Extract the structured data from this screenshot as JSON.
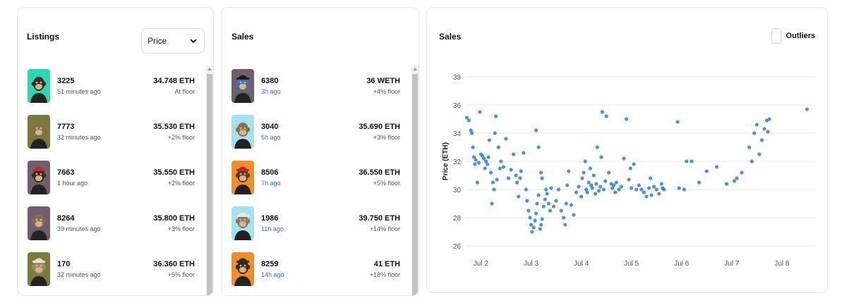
{
  "listings": {
    "title": "Listings",
    "sort_value": "Price",
    "items": [
      {
        "id": "3225",
        "time": "51 minutes ago",
        "price": "34.748 ETH",
        "floor": "At floor",
        "bg": "#2fd6b3",
        "fur": "#3b2d22",
        "hat": "none"
      },
      {
        "id": "7773",
        "time": "32 minutes ago",
        "price": "35.530 ETH",
        "floor": "+2% floor",
        "bg": "#7a7a3a",
        "fur": "#8b6c4a",
        "hat": "none"
      },
      {
        "id": "7663",
        "time": "1 hour ago",
        "price": "35.550 ETH",
        "floor": "+2% floor",
        "bg": "#6e5f6e",
        "fur": "#3a2a20",
        "hat": "#c0282d"
      },
      {
        "id": "8264",
        "time": "39 minutes ago",
        "price": "35.800 ETH",
        "floor": "+3% floor",
        "bg": "#6e5f6e",
        "fur": "#8b6c4a",
        "hat": "none"
      },
      {
        "id": "170",
        "time": "32 minutes ago",
        "price": "36.360 ETH",
        "floor": "+5% floor",
        "bg": "#7a7a3a",
        "fur": "#9a8a6a",
        "hat": "#e8e3d0"
      }
    ]
  },
  "sales": {
    "title": "Sales",
    "items": [
      {
        "id": "6380",
        "time": "3h ago",
        "price": "36 WETH",
        "floor": "+4% floor",
        "bg": "#6e5f6e",
        "fur": "#4a6fa5",
        "hat": "#1b1b1b"
      },
      {
        "id": "3040",
        "time": "5h ago",
        "price": "35.690 ETH",
        "floor": "+3% floor",
        "bg": "#a6e1ee",
        "fur": "#8b6c4a",
        "hat": "none"
      },
      {
        "id": "8506",
        "time": "7h ago",
        "price": "36.550 ETH",
        "floor": "+5% floor",
        "bg": "#ee8f2a",
        "fur": "#5a3a28",
        "hat": "#c0282d"
      },
      {
        "id": "1986",
        "time": "11h ago",
        "price": "39.750 ETH",
        "floor": "+14% floor",
        "bg": "#a6e1ee",
        "fur": "#8b7a5a",
        "hat": "#e8e8e8"
      },
      {
        "id": "8259",
        "time": "14h ago",
        "price": "41 ETH",
        "floor": "+18% floor",
        "bg": "#ee8f2a",
        "fur": "#3a2a20",
        "hat": "#2a2a2a"
      }
    ]
  },
  "chart": {
    "title": "Sales",
    "outliers_label": "Outliers",
    "accent": "#2f7fd8"
  },
  "chart_data": {
    "type": "scatter",
    "title": "Sales",
    "xlabel": "",
    "ylabel": "Price (ETH)",
    "xlim": [
      1.7,
      8.65
    ],
    "ylim": [
      25.5,
      38.5
    ],
    "x_ticks": [
      {
        "v": 2,
        "label": "Jul 2"
      },
      {
        "v": 3,
        "label": "Jul 3"
      },
      {
        "v": 4,
        "label": "Jul 4"
      },
      {
        "v": 5,
        "label": "Jul 5"
      },
      {
        "v": 6,
        "label": "Jul 6"
      },
      {
        "v": 7,
        "label": "Jul 7"
      },
      {
        "v": 8,
        "label": "Jul 8"
      }
    ],
    "y_ticks": [
      26,
      28,
      30,
      32,
      34,
      36,
      38
    ],
    "grid": true,
    "points": [
      [
        1.72,
        35.1
      ],
      [
        1.76,
        34.9
      ],
      [
        1.8,
        34.2
      ],
      [
        1.82,
        34.0
      ],
      [
        1.84,
        33.0
      ],
      [
        1.86,
        32.3
      ],
      [
        1.88,
        31.8
      ],
      [
        1.9,
        32.1
      ],
      [
        1.93,
        30.5
      ],
      [
        1.96,
        31.9
      ],
      [
        1.98,
        35.5
      ],
      [
        2.0,
        32.5
      ],
      [
        2.03,
        32.4
      ],
      [
        2.06,
        32.2
      ],
      [
        2.08,
        31.5
      ],
      [
        2.1,
        32.0
      ],
      [
        2.13,
        31.8
      ],
      [
        2.15,
        32.3
      ],
      [
        2.17,
        33.5
      ],
      [
        2.2,
        31.2
      ],
      [
        2.22,
        29.0
      ],
      [
        2.24,
        30.5
      ],
      [
        2.26,
        30.0
      ],
      [
        2.28,
        34.0
      ],
      [
        2.3,
        35.2
      ],
      [
        2.32,
        30.7
      ],
      [
        2.35,
        33.0
      ],
      [
        2.38,
        31.5
      ],
      [
        2.4,
        32.0
      ],
      [
        2.45,
        31.6
      ],
      [
        2.5,
        33.6
      ],
      [
        2.55,
        30.8
      ],
      [
        2.6,
        31.4
      ],
      [
        2.65,
        32.5
      ],
      [
        2.7,
        31.0
      ],
      [
        2.72,
        30.5
      ],
      [
        2.75,
        29.5
      ],
      [
        2.78,
        30.8
      ],
      [
        2.8,
        31.3
      ],
      [
        2.85,
        32.6
      ],
      [
        2.9,
        30.0
      ],
      [
        2.92,
        29.2
      ],
      [
        2.95,
        28.5
      ],
      [
        2.98,
        28.0
      ],
      [
        3.0,
        27.5
      ],
      [
        3.02,
        27.0
      ],
      [
        3.05,
        27.3
      ],
      [
        3.08,
        27.8
      ],
      [
        3.1,
        28.3
      ],
      [
        3.12,
        29.0
      ],
      [
        3.15,
        29.6
      ],
      [
        3.18,
        27.2
      ],
      [
        3.2,
        27.5
      ],
      [
        3.22,
        27.9
      ],
      [
        3.25,
        28.8
      ],
      [
        3.28,
        29.3
      ],
      [
        3.3,
        30.0
      ],
      [
        3.32,
        29.7
      ],
      [
        3.35,
        29.0
      ],
      [
        3.38,
        28.5
      ],
      [
        3.1,
        34.2
      ],
      [
        3.15,
        33.0
      ],
      [
        3.2,
        31.2
      ],
      [
        3.22,
        30.8
      ],
      [
        3.4,
        30.1
      ],
      [
        3.45,
        28.8
      ],
      [
        3.5,
        29.2
      ],
      [
        3.55,
        30.0
      ],
      [
        3.6,
        28.5
      ],
      [
        3.65,
        28.0
      ],
      [
        3.68,
        27.5
      ],
      [
        3.7,
        29.0
      ],
      [
        3.72,
        30.3
      ],
      [
        3.75,
        31.3
      ],
      [
        3.8,
        28.9
      ],
      [
        3.85,
        28.2
      ],
      [
        3.9,
        29.8
      ],
      [
        3.95,
        30.2
      ],
      [
        4.0,
        29.5
      ],
      [
        4.02,
        30.8
      ],
      [
        4.05,
        31.2
      ],
      [
        4.08,
        32.0
      ],
      [
        4.1,
        30.0
      ],
      [
        4.12,
        29.8
      ],
      [
        4.15,
        30.5
      ],
      [
        4.18,
        31.5
      ],
      [
        4.2,
        30.3
      ],
      [
        4.22,
        30.1
      ],
      [
        4.25,
        31.0
      ],
      [
        4.28,
        29.7
      ],
      [
        4.3,
        30.4
      ],
      [
        4.32,
        33.0
      ],
      [
        4.35,
        29.9
      ],
      [
        4.38,
        30.2
      ],
      [
        4.4,
        32.3
      ],
      [
        4.42,
        35.5
      ],
      [
        4.45,
        30.0
      ],
      [
        4.48,
        30.6
      ],
      [
        4.5,
        35.2
      ],
      [
        4.55,
        31.2
      ],
      [
        4.6,
        30.4
      ],
      [
        4.62,
        30.1
      ],
      [
        4.65,
        30.3
      ],
      [
        4.68,
        29.8
      ],
      [
        4.7,
        30.5
      ],
      [
        4.75,
        30.0
      ],
      [
        4.8,
        30.2
      ],
      [
        4.85,
        32.2
      ],
      [
        4.9,
        35.0
      ],
      [
        4.95,
        30.7
      ],
      [
        4.98,
        31.5
      ],
      [
        5.0,
        30.1
      ],
      [
        5.05,
        31.8
      ],
      [
        5.1,
        30.0
      ],
      [
        5.15,
        30.3
      ],
      [
        5.2,
        30.0
      ],
      [
        5.25,
        29.8
      ],
      [
        5.3,
        29.5
      ],
      [
        5.35,
        30.1
      ],
      [
        5.38,
        30.8
      ],
      [
        5.4,
        29.6
      ],
      [
        5.45,
        30.2
      ],
      [
        5.5,
        30.0
      ],
      [
        5.55,
        29.7
      ],
      [
        5.6,
        30.4
      ],
      [
        5.62,
        30.1
      ],
      [
        5.65,
        30.0
      ],
      [
        5.92,
        34.8
      ],
      [
        5.95,
        30.1
      ],
      [
        6.05,
        30.0
      ],
      [
        6.1,
        32.0
      ],
      [
        6.2,
        32.0
      ],
      [
        6.35,
        30.5
      ],
      [
        6.5,
        31.3
      ],
      [
        6.7,
        31.6
      ],
      [
        6.9,
        30.4
      ],
      [
        7.05,
        30.6
      ],
      [
        7.1,
        30.8
      ],
      [
        7.2,
        31.2
      ],
      [
        7.35,
        33.0
      ],
      [
        7.4,
        32.0
      ],
      [
        7.45,
        34.0
      ],
      [
        7.5,
        34.6
      ],
      [
        7.55,
        32.5
      ],
      [
        7.6,
        33.5
      ],
      [
        7.65,
        34.3
      ],
      [
        7.7,
        34.9
      ],
      [
        7.72,
        34.1
      ],
      [
        7.75,
        35.0
      ],
      [
        8.5,
        35.7
      ]
    ]
  }
}
